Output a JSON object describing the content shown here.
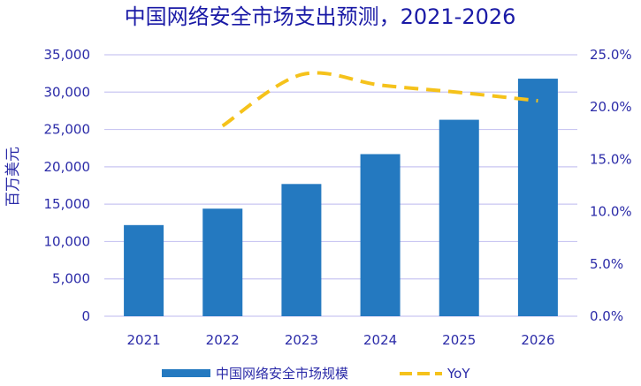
{
  "chart_data": {
    "type": "bar",
    "title": "中国网络安全市场支出预测，2021-2026",
    "ylabel": "百万美元",
    "categories": [
      "2021",
      "2022",
      "2023",
      "2024",
      "2025",
      "2026"
    ],
    "y_ticks": [
      "0",
      "5,000",
      "10,000",
      "15,000",
      "20,000",
      "25,000",
      "30,000",
      "35,000"
    ],
    "y2_ticks": [
      "0.0%",
      "5.0%",
      "10.0%",
      "15.0%",
      "20.0%",
      "25.0%"
    ],
    "ylim": [
      0,
      35000
    ],
    "y2lim": [
      0,
      25
    ],
    "series": [
      {
        "name": "中国网络安全市场规模",
        "type": "bar",
        "axis": "left",
        "color": "#2479c0",
        "values": [
          12200,
          14400,
          17700,
          21700,
          26300,
          31800
        ]
      },
      {
        "name": "YoY",
        "type": "line",
        "style": "dashed",
        "axis": "right",
        "color": "#f5c21b",
        "values": [
          null,
          18.2,
          23.1,
          22.1,
          21.4,
          20.6
        ]
      }
    ],
    "grid": true,
    "legend_position": "bottom"
  }
}
